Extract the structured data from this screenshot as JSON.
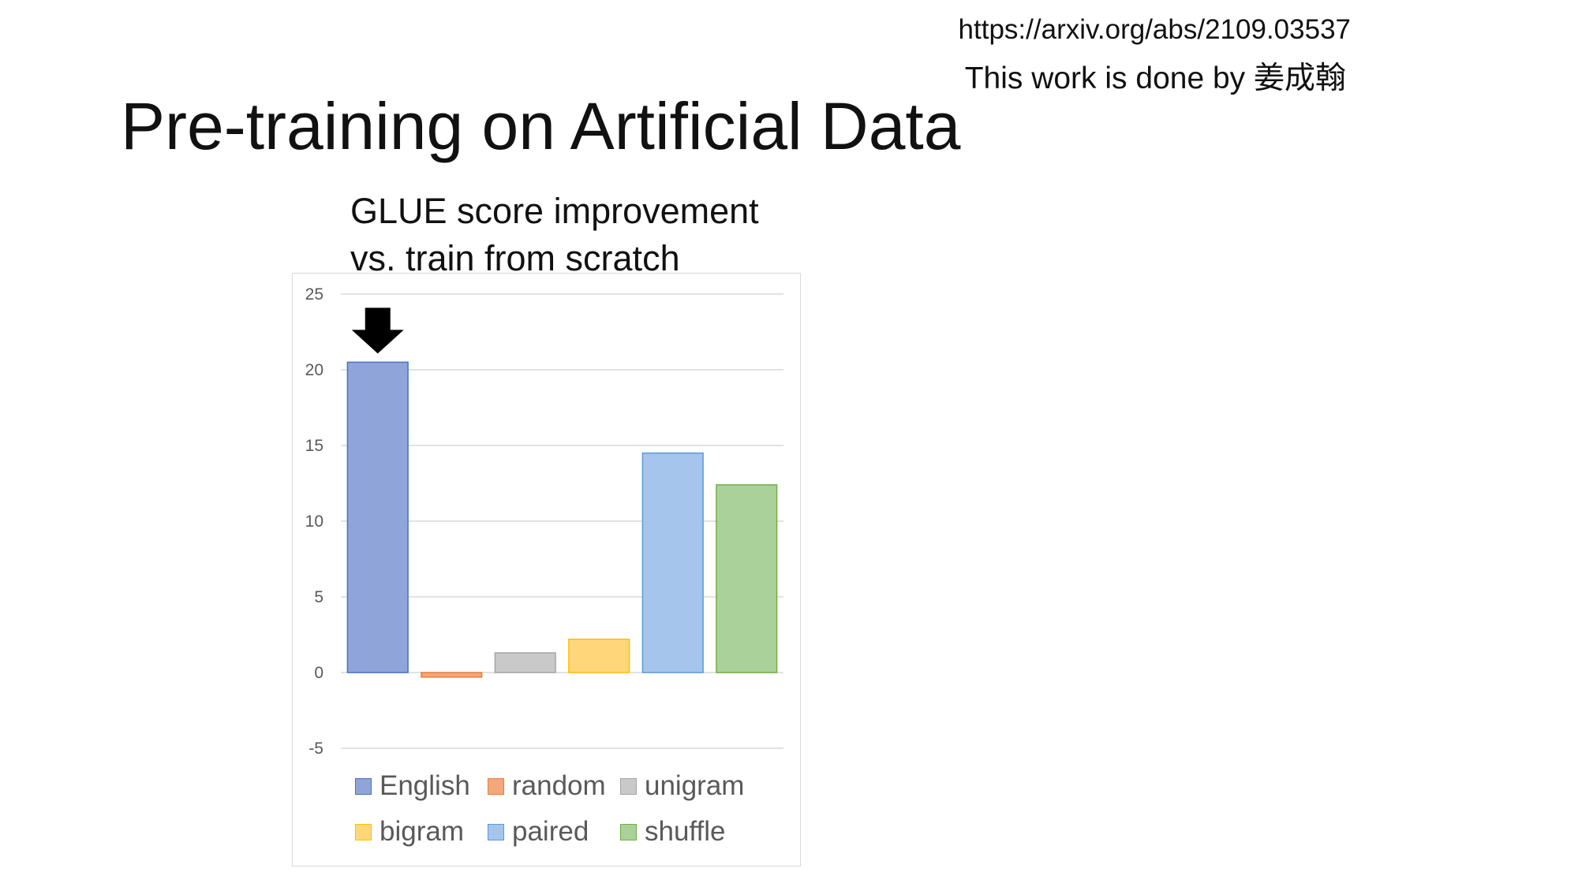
{
  "header": {
    "url": "https://arxiv.org/abs/2109.03537",
    "credit": "This work is done by 姜成翰"
  },
  "slide": {
    "title": "Pre-training on Artificial Data"
  },
  "chart_data": {
    "type": "bar",
    "title": [
      "GLUE score improvement",
      "vs. train from scratch"
    ],
    "xlabel": "",
    "ylabel": "",
    "ylim": [
      -5,
      25
    ],
    "yticks": [
      25,
      20,
      15,
      10,
      5,
      0,
      -5
    ],
    "grid": true,
    "legend_position": "bottom",
    "series": [
      {
        "name": "English",
        "value": 20.5,
        "fill": "#8fa5d9",
        "stroke": "#4472c4"
      },
      {
        "name": "random",
        "value": -0.3,
        "fill": "#f4a67c",
        "stroke": "#ed7d31"
      },
      {
        "name": "unigram",
        "value": 1.3,
        "fill": "#c9c9c9",
        "stroke": "#a5a5a5"
      },
      {
        "name": "bigram",
        "value": 2.2,
        "fill": "#ffd77a",
        "stroke": "#ffc000"
      },
      {
        "name": "paired",
        "value": 14.5,
        "fill": "#a6c5ec",
        "stroke": "#5b9bd5"
      },
      {
        "name": "shuffle",
        "value": 12.4,
        "fill": "#aad19a",
        "stroke": "#70ad47"
      }
    ],
    "annotation": {
      "type": "arrow-down",
      "target": "English",
      "color": "#000000"
    }
  }
}
